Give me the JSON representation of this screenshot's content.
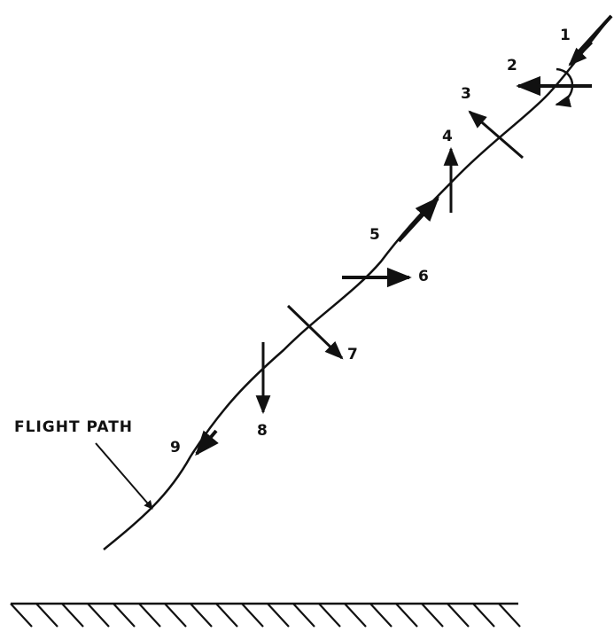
{
  "diagram": {
    "flight_path_label": "FLIGHT PATH",
    "positions": [
      {
        "number": "1",
        "name": "position-1"
      },
      {
        "number": "2",
        "name": "position-2"
      },
      {
        "number": "3",
        "name": "position-3"
      },
      {
        "number": "4",
        "name": "position-4"
      },
      {
        "number": "5",
        "name": "position-5"
      },
      {
        "number": "6",
        "name": "position-6"
      },
      {
        "number": "7",
        "name": "position-7"
      },
      {
        "number": "8",
        "name": "position-8"
      },
      {
        "number": "9",
        "name": "position-9"
      }
    ],
    "stroke_color": "#111111",
    "background_color": "#ffffff"
  }
}
